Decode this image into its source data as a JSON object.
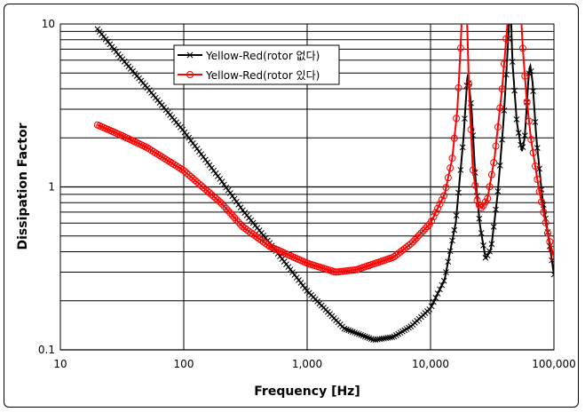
{
  "chart_data": {
    "type": "line",
    "title": "",
    "xlabel": "Frequency [Hz]",
    "ylabel": "Dissipation Factor",
    "x_scale": "log",
    "y_scale": "log",
    "xlim": [
      10,
      100000
    ],
    "ylim": [
      0.1,
      10
    ],
    "x_ticks": [
      "10",
      "100",
      "1,000",
      "10,000",
      "100,000"
    ],
    "y_ticks": [
      "10",
      "1",
      "0.1"
    ],
    "grid": true,
    "legend_position": "top-left",
    "series": [
      {
        "name": "Yellow-Red(rotor 없다)",
        "color": "#000000",
        "marker": "x",
        "points": [
          [
            20,
            9.3
          ],
          [
            30,
            6.4
          ],
          [
            50,
            4.1
          ],
          [
            100,
            2.2
          ],
          [
            200,
            1.1
          ],
          [
            300,
            0.72
          ],
          [
            500,
            0.45
          ],
          [
            1000,
            0.23
          ],
          [
            2000,
            0.135
          ],
          [
            3500,
            0.115
          ],
          [
            5000,
            0.12
          ],
          [
            7000,
            0.14
          ],
          [
            10000,
            0.18
          ],
          [
            13000,
            0.27
          ],
          [
            16000,
            0.6
          ],
          [
            18500,
            2
          ],
          [
            20000,
            5.1
          ],
          [
            21500,
            3
          ],
          [
            23000,
            1.2
          ],
          [
            25000,
            0.6
          ],
          [
            28000,
            0.36
          ],
          [
            31000,
            0.42
          ],
          [
            35000,
            0.9
          ],
          [
            39000,
            2.5
          ],
          [
            43000,
            9
          ],
          [
            44500,
            14
          ],
          [
            46000,
            6
          ],
          [
            50000,
            2.5
          ],
          [
            55000,
            1.65
          ],
          [
            58000,
            2
          ],
          [
            62000,
            4.5
          ],
          [
            64000,
            5.7
          ],
          [
            67000,
            4.5
          ],
          [
            72000,
            2
          ],
          [
            80000,
            0.9
          ],
          [
            90000,
            0.5
          ],
          [
            100000,
            0.29
          ]
        ]
      },
      {
        "name": "Yellow-Red(rotor 있다)",
        "color": "#ff0000",
        "marker": "o",
        "points": [
          [
            20,
            2.4
          ],
          [
            30,
            2.1
          ],
          [
            50,
            1.75
          ],
          [
            100,
            1.26
          ],
          [
            200,
            0.8
          ],
          [
            300,
            0.57
          ],
          [
            500,
            0.43
          ],
          [
            1000,
            0.34
          ],
          [
            1700,
            0.3
          ],
          [
            2500,
            0.31
          ],
          [
            5000,
            0.37
          ],
          [
            7000,
            0.45
          ],
          [
            10000,
            0.6
          ],
          [
            13000,
            0.9
          ],
          [
            15000,
            1.5
          ],
          [
            16500,
            3
          ],
          [
            17500,
            7
          ],
          [
            18200,
            15
          ],
          [
            19500,
            15
          ],
          [
            20500,
            4
          ],
          [
            22000,
            1.3
          ],
          [
            24000,
            0.8
          ],
          [
            26000,
            0.74
          ],
          [
            29000,
            0.85
          ],
          [
            33000,
            1.5
          ],
          [
            38000,
            4
          ],
          [
            42000,
            10
          ],
          [
            43500,
            15
          ],
          [
            53000,
            15
          ],
          [
            56000,
            7
          ],
          [
            60000,
            3.5
          ],
          [
            65000,
            2
          ],
          [
            75000,
            1
          ],
          [
            90000,
            0.5
          ],
          [
            100000,
            0.37
          ]
        ]
      }
    ]
  }
}
